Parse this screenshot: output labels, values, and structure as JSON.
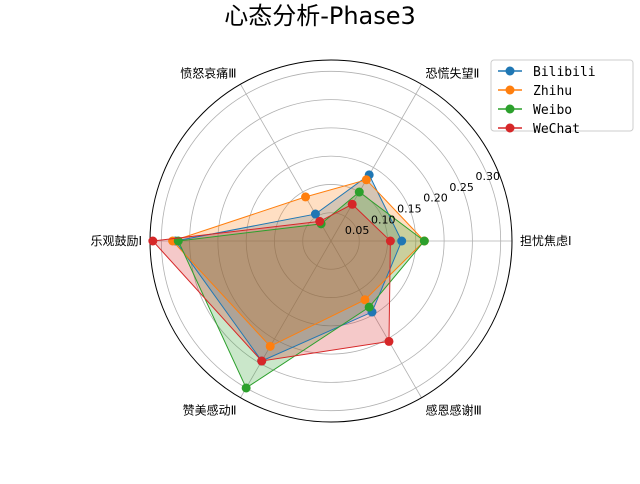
{
  "chart_data": {
    "type": "radar",
    "title": "心态分析-Phase3",
    "categories": [
      "担忧焦虑Ⅰ",
      "恐慌失望Ⅱ",
      "愤怒哀痛Ⅲ",
      "乐观鼓励Ⅰ",
      "赞美感动Ⅱ",
      "感恩感谢Ⅲ"
    ],
    "rlim": [
      0,
      0.32
    ],
    "rticks": [
      0.05,
      0.1,
      0.15,
      0.2,
      0.25,
      0.3
    ],
    "rtick_labels": [
      "0.05",
      "0.10",
      "0.15",
      "0.20",
      "0.25",
      "0.30"
    ],
    "grid": true,
    "legend_position": "top-right",
    "series": [
      {
        "name": "Bilibili",
        "color": "#1f77b4",
        "values": [
          0.125,
          0.135,
          0.055,
          0.275,
          0.245,
          0.145
        ]
      },
      {
        "name": "Zhihu",
        "color": "#ff7f0e",
        "values": [
          0.165,
          0.125,
          0.09,
          0.28,
          0.215,
          0.12
        ]
      },
      {
        "name": "Weibo",
        "color": "#2ca02c",
        "values": [
          0.165,
          0.1,
          0.035,
          0.27,
          0.3,
          0.135
        ]
      },
      {
        "name": "WeChat",
        "color": "#d62728",
        "values": [
          0.105,
          0.075,
          0.04,
          0.315,
          0.245,
          0.205
        ]
      }
    ]
  }
}
